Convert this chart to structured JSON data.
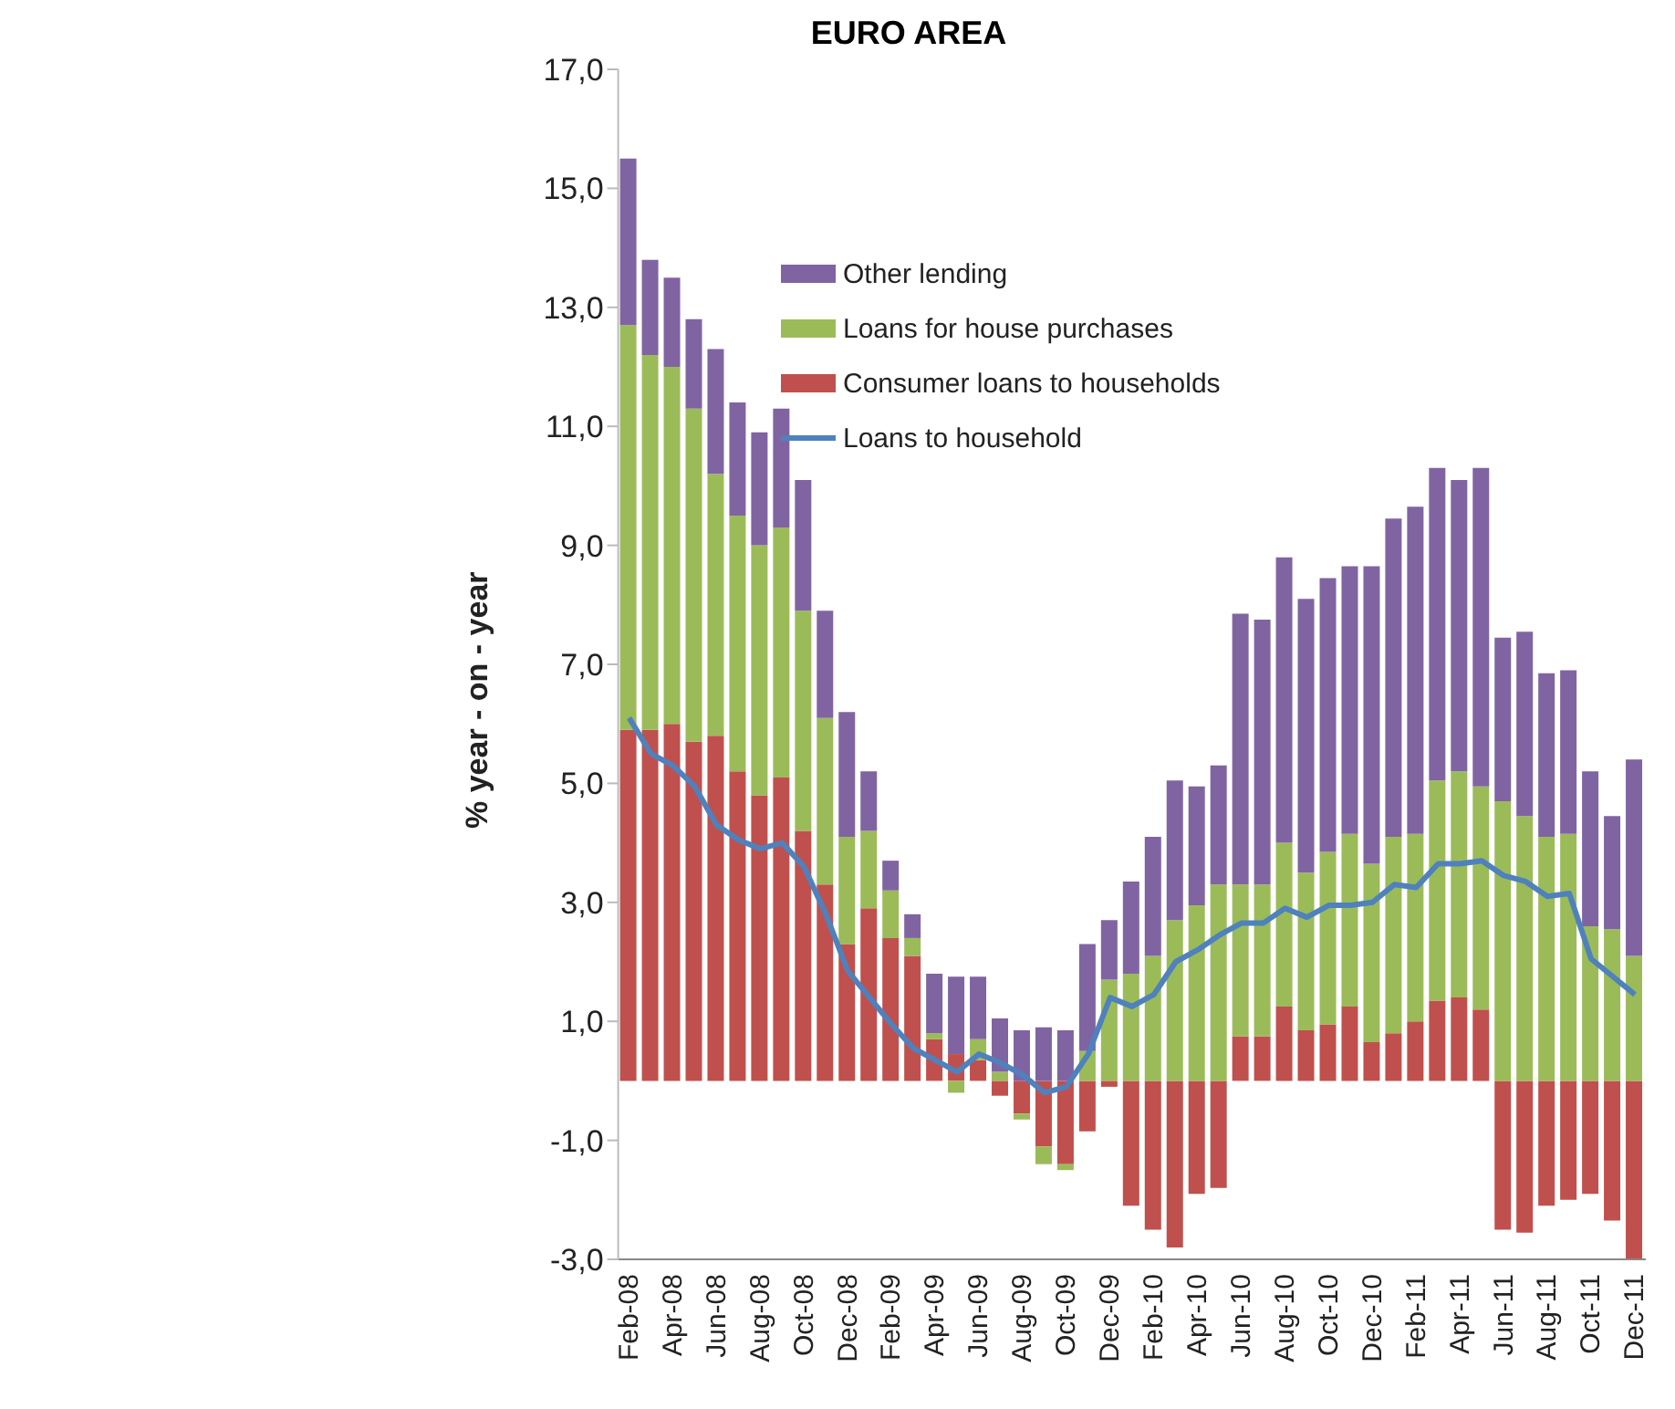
{
  "chart_data": {
    "type": "bar",
    "title": "EURO AREA",
    "ylabel": "% year - on - year",
    "categories": [
      "Feb-08",
      null,
      "Apr-08",
      null,
      "Jun-08",
      null,
      "Aug-08",
      null,
      "Oct-08",
      null,
      "Dec-08",
      null,
      "Feb-09",
      null,
      "Apr-09",
      null,
      "Jun-09",
      null,
      "Aug-09",
      null,
      "Oct-09",
      null,
      "Dec-09",
      null,
      "Feb-10",
      null,
      "Apr-10",
      null,
      "Jun-10",
      null,
      "Aug-10",
      null,
      "Oct-10",
      null,
      "Dec-10",
      null,
      "Feb-11",
      null,
      "Apr-11",
      null,
      "Jun-11",
      null,
      "Aug-11",
      null,
      "Oct-11",
      null,
      "Dec-11"
    ],
    "stacked": true,
    "series": [
      {
        "name": "Consumer loans to households",
        "color": "#c0504d",
        "values": [
          5.9,
          5.9,
          6.0,
          5.7,
          5.8,
          5.2,
          4.8,
          5.1,
          4.2,
          3.3,
          2.3,
          2.9,
          2.4,
          2.1,
          0.7,
          0.45,
          0.35,
          -0.25,
          -0.55,
          -1.1,
          -1.4,
          -0.85,
          -0.1,
          -2.1,
          -2.5,
          -2.8,
          -1.9,
          -1.8,
          0.75,
          0.75,
          1.25,
          0.85,
          0.95,
          1.25,
          0.65,
          0.8,
          1.0,
          1.35,
          1.4,
          1.2,
          -2.5,
          -2.55,
          -2.1,
          -2.0,
          -1.9,
          -2.35,
          -3.0
        ]
      },
      {
        "name": "Loans for house purchases",
        "color": "#9bbb59",
        "values": [
          6.8,
          6.3,
          6.0,
          5.6,
          4.4,
          4.3,
          4.2,
          4.2,
          3.7,
          2.8,
          1.8,
          1.3,
          0.8,
          0.3,
          0.1,
          -0.2,
          0.35,
          0.15,
          -0.1,
          -0.3,
          -0.1,
          0.5,
          1.7,
          1.8,
          2.1,
          2.7,
          2.95,
          3.3,
          2.55,
          2.55,
          2.75,
          2.65,
          2.9,
          2.9,
          3.0,
          3.3,
          3.15,
          3.7,
          3.8,
          3.75,
          4.7,
          4.45,
          4.1,
          4.15,
          2.6,
          2.55,
          2.1
        ]
      },
      {
        "name": "Other lending",
        "color": "#8064a2",
        "values": [
          2.8,
          1.6,
          1.5,
          1.5,
          2.1,
          1.9,
          1.9,
          2.0,
          2.2,
          1.8,
          2.1,
          1.0,
          0.5,
          0.4,
          1.0,
          1.3,
          1.05,
          0.9,
          0.85,
          0.9,
          0.85,
          1.8,
          1.0,
          1.55,
          2.0,
          2.35,
          2.0,
          2.0,
          4.55,
          4.45,
          4.8,
          4.6,
          4.6,
          4.5,
          5.0,
          5.35,
          5.5,
          5.25,
          4.9,
          5.35,
          2.75,
          3.1,
          2.75,
          2.75,
          2.6,
          1.9,
          3.3
        ]
      },
      {
        "name": "Loans to household",
        "type": "line",
        "color": "#4f81bd",
        "values": [
          6.1,
          5.5,
          5.3,
          4.95,
          4.3,
          4.05,
          3.9,
          4.0,
          3.6,
          2.8,
          1.85,
          1.4,
          0.95,
          0.55,
          0.35,
          0.15,
          0.45,
          0.3,
          0.1,
          -0.2,
          -0.1,
          0.45,
          1.4,
          1.25,
          1.45,
          2.0,
          2.2,
          2.45,
          2.65,
          2.65,
          2.9,
          2.75,
          2.95,
          2.95,
          3.0,
          3.3,
          3.25,
          3.65,
          3.65,
          3.7,
          3.45,
          3.35,
          3.1,
          3.15,
          2.05,
          1.75,
          1.45
        ]
      }
    ],
    "ylim": [
      -3,
      17
    ],
    "yticks": [
      {
        "value": -3,
        "label": "-3,0"
      },
      {
        "value": -1,
        "label": "-1,0"
      },
      {
        "value": 1,
        "label": "1,0"
      },
      {
        "value": 3,
        "label": "3,0"
      },
      {
        "value": 5,
        "label": "5,0"
      },
      {
        "value": 7,
        "label": "7,0"
      },
      {
        "value": 9,
        "label": "9,0"
      },
      {
        "value": 11,
        "label": "11,0"
      },
      {
        "value": 13,
        "label": "13,0"
      },
      {
        "value": 15,
        "label": "15,0"
      },
      {
        "value": 17,
        "label": "17,0"
      }
    ],
    "grid": false,
    "legend": "top",
    "marker": "none",
    "line_style": "solid"
  }
}
